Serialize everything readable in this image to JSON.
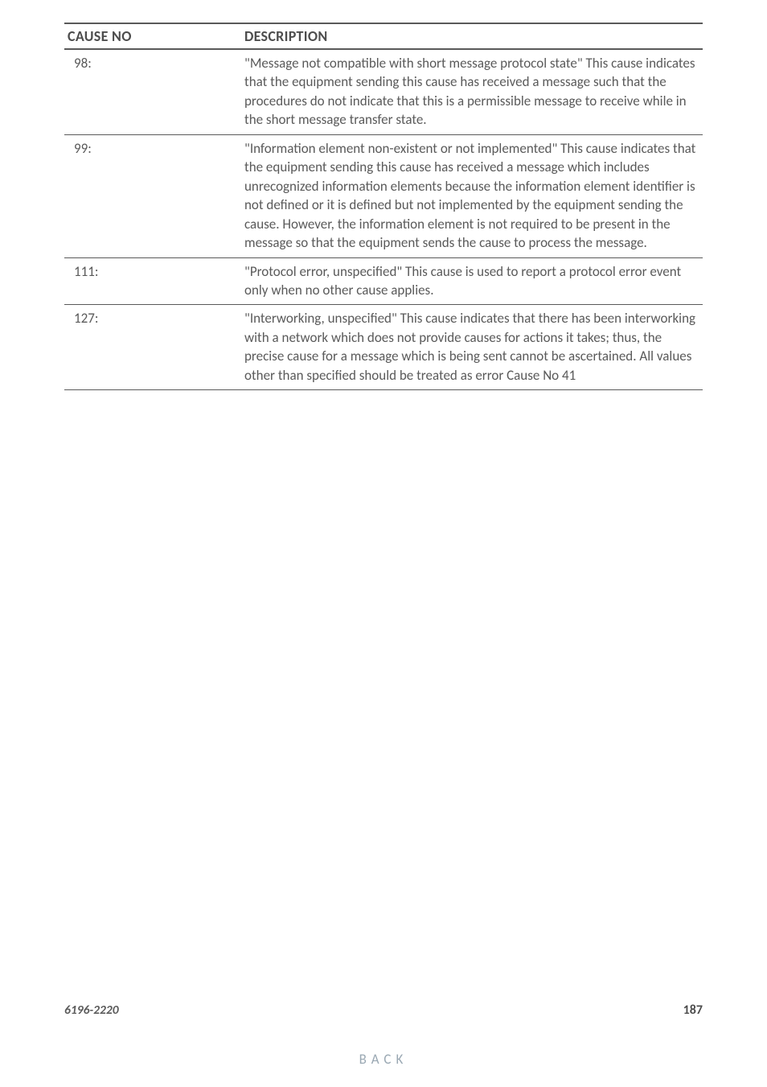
{
  "table": {
    "headers": {
      "cause_no": "CAUSE NO",
      "description": "DESCRIPTION"
    },
    "rows": [
      {
        "no": "98:",
        "desc": "\"Message not compatible with short message protocol state\"\nThis cause indicates that the equipment sending this cause has received a message such that the procedures do not indicate that this is a permissible message to receive while in the short message transfer state."
      },
      {
        "no": "99:",
        "desc": "\"Information element non-existent or not implemented\" This cause indicates that the equipment sending this cause has received a message which includes unrecognized information elements because the information element identifier is not defined or it is defined but not implemented by the equipment sending the cause. However, the information element is not required to be present in the message so that the equipment sends the cause to process the message."
      },
      {
        "no": "111:",
        "desc": "\"Protocol error, unspecified\"\nThis cause is used to report a protocol error event only when no other cause applies."
      },
      {
        "no": "127:",
        "desc": "\"Interworking, unspecified\"\nThis cause indicates that there has been interworking with a network which does not provide causes for actions it takes; thus, the precise cause for a message which is being sent cannot be ascertained. All values other than specified should be treated as error Cause No 41"
      }
    ]
  },
  "footer": {
    "model": "6196-2220",
    "page_number": "187"
  },
  "nav": {
    "back": "BACK"
  }
}
